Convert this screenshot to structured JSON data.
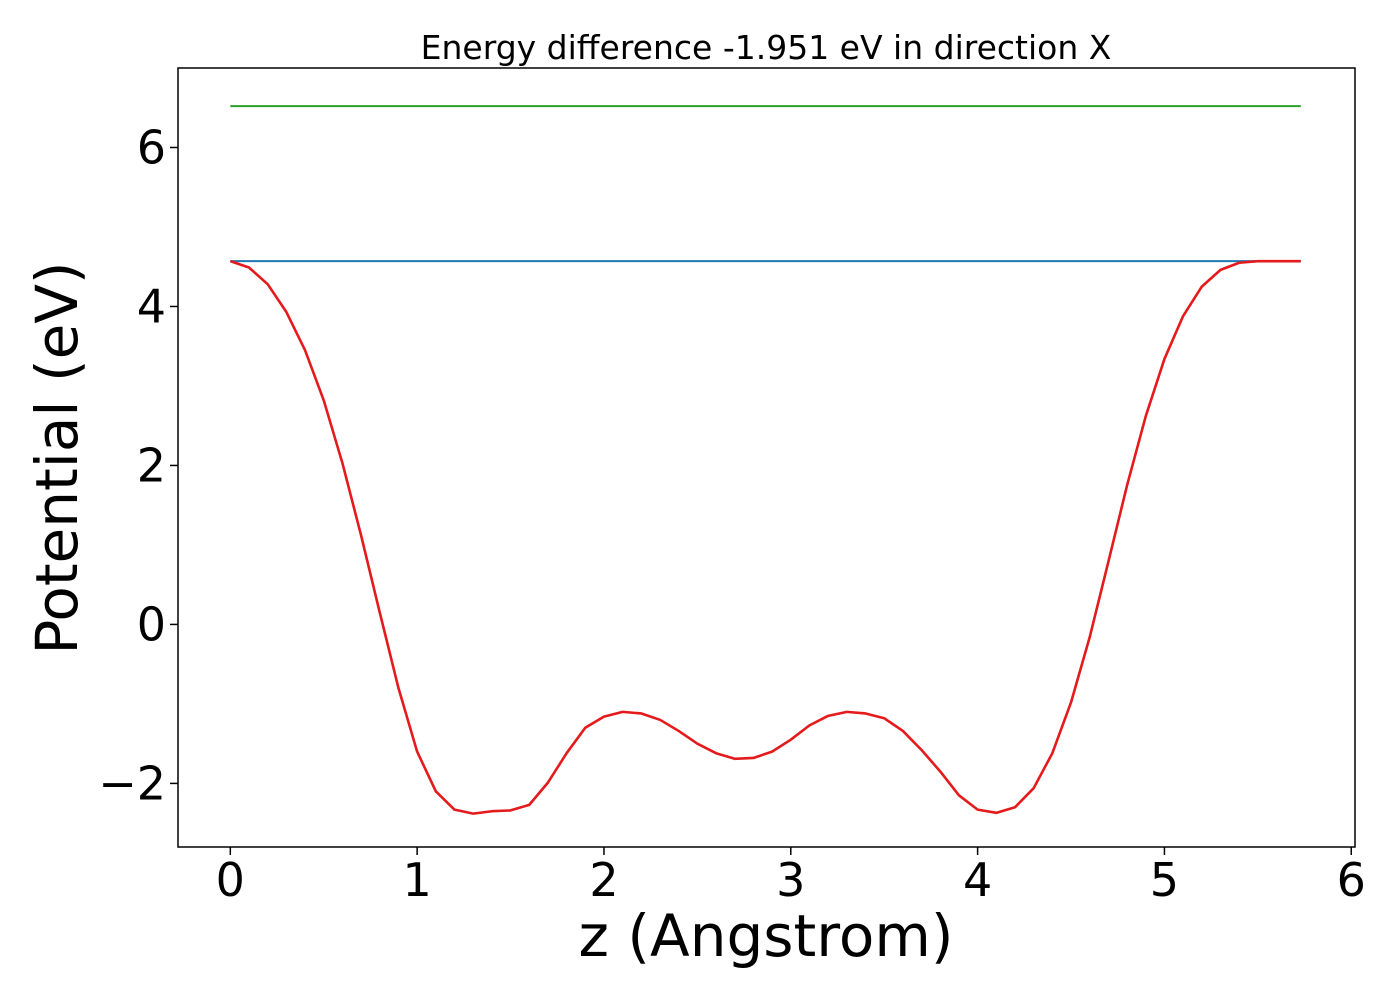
{
  "chart_data": {
    "type": "line",
    "title": "Energy difference -1.951 eV in direction X",
    "xlabel": "z (Angstrom)",
    "ylabel": "Potential (eV)",
    "xlim": [
      -0.28,
      6.02
    ],
    "ylim": [
      -2.8,
      7.0
    ],
    "xticks": [
      0,
      1,
      2,
      3,
      4,
      5,
      6
    ],
    "xtick_labels": [
      "0",
      "1",
      "2",
      "3",
      "4",
      "5",
      "6"
    ],
    "yticks": [
      -2,
      0,
      2,
      4,
      6
    ],
    "ytick_labels": [
      "−2",
      "0",
      "2",
      "4",
      "6"
    ],
    "grid": false,
    "legend": "none",
    "series": [
      {
        "color": "#2ca02c",
        "x": [
          0,
          5.73
        ],
        "y": [
          6.52,
          6.52
        ]
      },
      {
        "color": "#1f77b4",
        "x": [
          0,
          5.73
        ],
        "y": [
          4.57,
          4.57
        ]
      },
      {
        "color": "#e41a1c",
        "x": [
          0.0,
          0.1,
          0.2,
          0.3,
          0.4,
          0.5,
          0.6,
          0.7,
          0.8,
          0.9,
          1.0,
          1.1,
          1.2,
          1.3,
          1.4,
          1.5,
          1.6,
          1.7,
          1.8,
          1.9,
          2.0,
          2.1,
          2.2,
          2.3,
          2.4,
          2.5,
          2.6,
          2.7,
          2.8,
          2.9,
          3.0,
          3.1,
          3.2,
          3.3,
          3.4,
          3.5,
          3.6,
          3.7,
          3.8,
          3.9,
          4.0,
          4.1,
          4.2,
          4.3,
          4.4,
          4.5,
          4.6,
          4.7,
          4.8,
          4.9,
          5.0,
          5.1,
          5.2,
          5.3,
          5.4,
          5.5,
          5.6,
          5.73
        ],
        "y": [
          4.57,
          4.49,
          4.28,
          3.93,
          3.45,
          2.82,
          2.03,
          1.12,
          0.15,
          -0.8,
          -1.6,
          -2.1,
          -2.33,
          -2.38,
          -2.35,
          -2.34,
          -2.27,
          -1.99,
          -1.62,
          -1.3,
          -1.16,
          -1.1,
          -1.12,
          -1.2,
          -1.34,
          -1.5,
          -1.62,
          -1.69,
          -1.68,
          -1.6,
          -1.45,
          -1.27,
          -1.15,
          -1.1,
          -1.12,
          -1.18,
          -1.34,
          -1.58,
          -1.85,
          -2.15,
          -2.33,
          -2.37,
          -2.3,
          -2.06,
          -1.62,
          -0.98,
          -0.16,
          0.79,
          1.75,
          2.62,
          3.34,
          3.88,
          4.25,
          4.46,
          4.55,
          4.57,
          4.57,
          4.57
        ]
      }
    ]
  }
}
